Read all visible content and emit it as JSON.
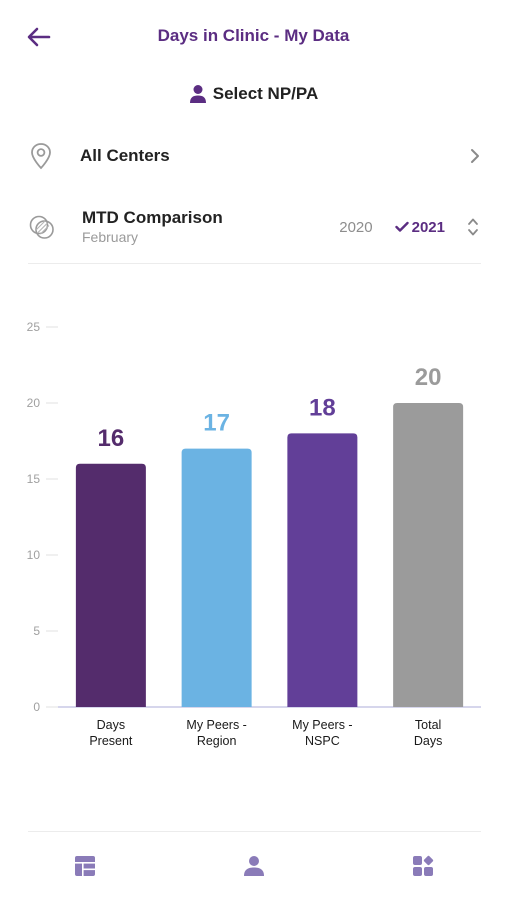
{
  "header": {
    "title": "Days in Clinic - My Data"
  },
  "select_np": {
    "label": "Select NP/PA"
  },
  "centers": {
    "label": "All Centers"
  },
  "mtd": {
    "title": "MTD Comparison",
    "month": "February",
    "years": [
      "2020",
      "2021"
    ],
    "selected_year": "2021"
  },
  "colors": {
    "accent": "#5b2d82",
    "days_present": "#542c6c",
    "peers_region": "#6bb3e3",
    "peers_nspc": "#623f98",
    "total_days": "#9b9b9b"
  },
  "chart_data": {
    "type": "bar",
    "categories": [
      "Days\nPresent",
      "My Peers -\nRegion",
      "My Peers -\nNSPC",
      "Total\nDays"
    ],
    "values": [
      16,
      17,
      18,
      20
    ],
    "value_colors": [
      "#542c6c",
      "#6bb3e3",
      "#623f98",
      "#9b9b9b"
    ],
    "yticks": [
      0,
      5,
      10,
      15,
      20,
      25
    ],
    "ylim": [
      0,
      25
    ],
    "grid": false,
    "legend": "none"
  },
  "bottom_nav": {
    "items": [
      {
        "icon": "dashboard-icon"
      },
      {
        "icon": "person-icon"
      },
      {
        "icon": "grid-icon"
      }
    ]
  }
}
